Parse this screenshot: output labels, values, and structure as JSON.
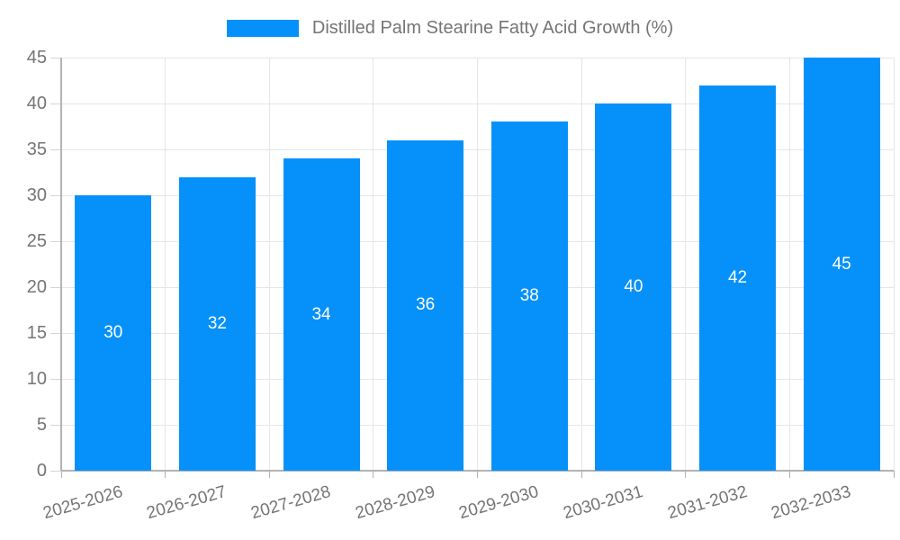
{
  "legend": {
    "label": "Distilled Palm Stearine Fatty Acid Growth (%)"
  },
  "colors": {
    "bar": "#0691fa",
    "grid": "#e6e6e6",
    "tick": "#d6d6d6",
    "axis": "#b3b3b3",
    "text": "#757575",
    "bar_label": "#ffffff",
    "background": "#ffffff"
  },
  "chart_data": {
    "type": "bar",
    "title": "",
    "categories": [
      "2025-2026",
      "2026-2027",
      "2027-2028",
      "2028-2029",
      "2029-2030",
      "2030-2031",
      "2031-2032",
      "2032-2033"
    ],
    "values": [
      30,
      32,
      34,
      36,
      38,
      40,
      42,
      45
    ],
    "series": [
      {
        "name": "Distilled Palm Stearine Fatty Acid Growth (%)",
        "values": [
          30,
          32,
          34,
          36,
          38,
          40,
          42,
          45
        ]
      }
    ],
    "bar_value_labels": [
      "30",
      "32",
      "34",
      "36",
      "38",
      "40",
      "42",
      "45"
    ],
    "xlabel": "",
    "ylabel": "",
    "ylim": [
      0,
      45
    ],
    "yticks": [
      0,
      5,
      10,
      15,
      20,
      25,
      30,
      35,
      40,
      45
    ],
    "grid": true,
    "legend_position": "top",
    "x_tick_label_rotation_deg": -16
  }
}
